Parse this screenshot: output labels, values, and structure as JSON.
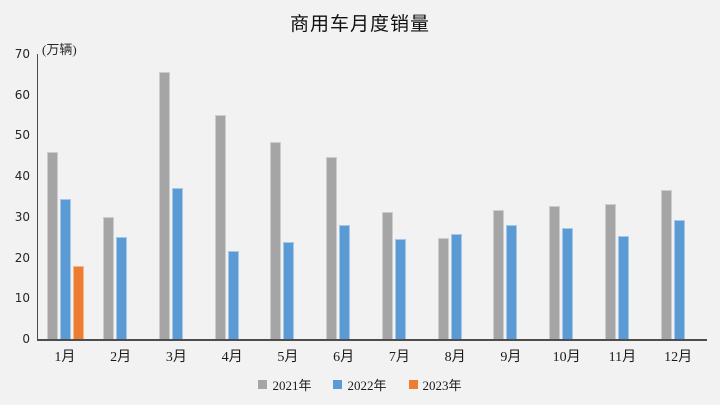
{
  "chart_data": {
    "type": "bar",
    "title": "商用车月度销量",
    "unit_label": "(万辆)",
    "categories": [
      "1月",
      "2月",
      "3月",
      "4月",
      "5月",
      "6月",
      "7月",
      "8月",
      "9月",
      "10月",
      "11月",
      "12月"
    ],
    "series": [
      {
        "name": "2021年",
        "color": "#a5a5a5",
        "values": [
          46,
          30,
          65.5,
          55,
          48.3,
          44.6,
          31.3,
          24.8,
          31.7,
          32.6,
          33.1,
          36.5
        ]
      },
      {
        "name": "2022年",
        "color": "#5b9bd5",
        "values": [
          34.5,
          25,
          37.2,
          21.7,
          23.9,
          28.1,
          24.6,
          25.8,
          27.9,
          27.3,
          25.4,
          29.2
        ]
      },
      {
        "name": "2023年",
        "color": "#ed7d31",
        "values": [
          18,
          null,
          null,
          null,
          null,
          null,
          null,
          null,
          null,
          null,
          null,
          null
        ]
      }
    ],
    "y_axis": {
      "min": 0,
      "max": 70,
      "step": 10
    },
    "legend_position": "bottom",
    "grid": false,
    "background_color": "#f2f2f2",
    "axis_color": "#4d4d4d"
  }
}
